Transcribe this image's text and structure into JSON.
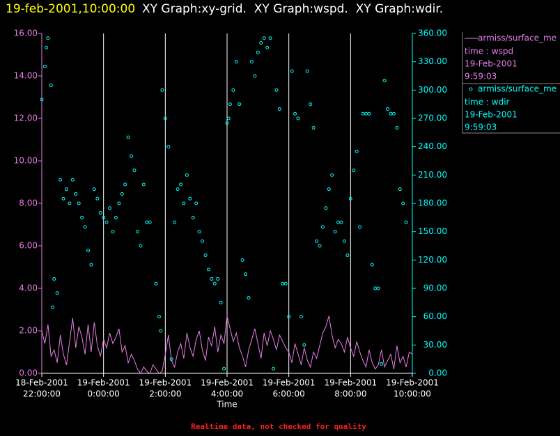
{
  "chart_data": {
    "type": "line_scatter",
    "timestamp": "19-feb-2001,10:00:00",
    "title": "XY Graph:xy-grid.  XY Graph:wspd.  XY Graph:wdir.",
    "x_label": "Time",
    "note": "Realtime data, not checked for quality",
    "grid": true,
    "xlim": [
      22,
      34
    ],
    "xticks": [
      {
        "value": 22,
        "label": [
          "18-Feb-2001",
          "22:00:00"
        ]
      },
      {
        "value": 24,
        "label": [
          "19-Feb-2001",
          "0:00:00"
        ]
      },
      {
        "value": 26,
        "label": [
          "19-Feb-2001",
          "2:00:00"
        ]
      },
      {
        "value": 28,
        "label": [
          "19-Feb-2001",
          "4:00:00"
        ]
      },
      {
        "value": 30,
        "label": [
          "19-Feb-2001",
          "6:00:00"
        ]
      },
      {
        "value": 32,
        "label": [
          "19-Feb-2001",
          "8:00:00"
        ]
      },
      {
        "value": 34,
        "label": [
          "19-Feb-2001",
          "10:00:00"
        ]
      }
    ],
    "ylim": [
      0,
      16
    ],
    "yticks": [
      {
        "value": 0,
        "label": "0.00"
      },
      {
        "value": 2,
        "label": "2.00"
      },
      {
        "value": 4,
        "label": "4.00"
      },
      {
        "value": 6,
        "label": "6.00"
      },
      {
        "value": 8,
        "label": "8.00"
      },
      {
        "value": 10,
        "label": "10.00"
      },
      {
        "value": 12,
        "label": "12.00"
      },
      {
        "value": 14,
        "label": "14.00"
      },
      {
        "value": 16,
        "label": "16.00"
      }
    ],
    "y2lim": [
      0,
      360
    ],
    "y2ticks": [
      {
        "value": 0,
        "label": "0.00"
      },
      {
        "value": 30,
        "label": "30.00"
      },
      {
        "value": 60,
        "label": "60.00"
      },
      {
        "value": 90,
        "label": "90.00"
      },
      {
        "value": 120,
        "label": "120.00"
      },
      {
        "value": 150,
        "label": "150.00"
      },
      {
        "value": 180,
        "label": "180.00"
      },
      {
        "value": 210,
        "label": "210.00"
      },
      {
        "value": 240,
        "label": "240.00"
      },
      {
        "value": 270,
        "label": "270.00"
      },
      {
        "value": 300,
        "label": "300.00"
      },
      {
        "value": 330,
        "label": "330.00"
      },
      {
        "value": 360,
        "label": "360.00"
      }
    ],
    "series": [
      {
        "name": "armiss/surface_me",
        "kind": "line",
        "color": "#e67ee6",
        "legend_info": [
          "time : wspd",
          "19-Feb-2001",
          "9:59:03"
        ],
        "x": [
          22,
          22.1,
          22.2,
          22.3,
          22.4,
          22.5,
          22.6,
          22.7,
          22.8,
          22.9,
          23,
          23.1,
          23.2,
          23.3,
          23.4,
          23.5,
          23.6,
          23.7,
          23.8,
          23.9,
          24,
          24.1,
          24.2,
          24.3,
          24.4,
          24.5,
          24.6,
          24.7,
          24.8,
          24.9,
          25,
          25.1,
          25.2,
          25.3,
          25.4,
          25.5,
          25.6,
          25.7,
          25.8,
          25.9,
          26,
          26.1,
          26.2,
          26.3,
          26.4,
          26.5,
          26.6,
          26.7,
          26.8,
          26.9,
          27,
          27.1,
          27.2,
          27.3,
          27.4,
          27.5,
          27.6,
          27.7,
          27.8,
          27.9,
          28,
          28.1,
          28.2,
          28.3,
          28.4,
          28.5,
          28.6,
          28.7,
          28.8,
          28.9,
          29,
          29.1,
          29.2,
          29.3,
          29.4,
          29.5,
          29.6,
          29.7,
          29.8,
          29.9,
          30,
          30.1,
          30.2,
          30.3,
          30.4,
          30.5,
          30.6,
          30.7,
          30.8,
          30.9,
          31,
          31.1,
          31.2,
          31.3,
          31.4,
          31.5,
          31.6,
          31.7,
          31.8,
          31.9,
          32,
          32.1,
          32.2,
          32.3,
          32.4,
          32.5,
          32.6,
          32.7,
          32.8,
          32.9,
          33,
          33.1,
          33.2,
          33.3,
          33.4,
          33.5,
          33.6,
          33.7,
          33.8,
          33.9,
          34
        ],
        "values": [
          2.0,
          1.4,
          2.3,
          0.8,
          1.1,
          0.5,
          1.8,
          0.9,
          0.4,
          1.5,
          2.6,
          1.2,
          2.2,
          1.7,
          0.9,
          2.3,
          1.0,
          2.4,
          1.3,
          0.8,
          1.6,
          1.2,
          1.9,
          1.4,
          1.7,
          2.1,
          1.0,
          1.3,
          0.5,
          0.9,
          0.6,
          0.2,
          0.0,
          0.3,
          0.1,
          0.0,
          0.4,
          0.2,
          0.0,
          0.1,
          0.9,
          1.8,
          0.6,
          0.3,
          1.0,
          1.4,
          0.7,
          1.9,
          1.2,
          0.8,
          1.6,
          2.0,
          1.1,
          0.6,
          1.7,
          1.3,
          2.2,
          1.0,
          1.8,
          1.4,
          2.7,
          2.1,
          1.5,
          1.9,
          1.2,
          0.8,
          0.3,
          1.1,
          1.6,
          2.1,
          1.4,
          0.7,
          1.9,
          1.3,
          2.0,
          1.6,
          1.1,
          1.8,
          1.5,
          1.2,
          1.0,
          0.5,
          1.4,
          0.9,
          0.4,
          1.2,
          0.6,
          0.3,
          1.0,
          0.7,
          1.3,
          1.9,
          2.2,
          2.7,
          1.8,
          1.2,
          1.6,
          1.4,
          1.0,
          1.7,
          1.2,
          0.8,
          1.5,
          1.0,
          0.6,
          0.3,
          1.1,
          0.5,
          0.2,
          0.4,
          1.1,
          0.3,
          0.6,
          0.9,
          0.2,
          1.3,
          0.5,
          0.8,
          0.3,
          1.0,
          0.9
        ]
      },
      {
        "name": "armiss/surface_me",
        "kind": "scatter",
        "axis": "y2",
        "color": "#00ffff",
        "legend_info": [
          "time : wdir",
          "19-Feb-2001",
          "9:59:03"
        ],
        "x": [
          22,
          22.1,
          22.15,
          22.2,
          22.3,
          22.35,
          22.4,
          22.5,
          22.6,
          22.7,
          22.8,
          22.9,
          23,
          23.1,
          23.2,
          23.3,
          23.4,
          23.5,
          23.6,
          23.7,
          23.8,
          23.9,
          24,
          24.1,
          24.2,
          24.3,
          24.4,
          24.5,
          24.6,
          24.7,
          24.8,
          24.9,
          25,
          25.1,
          25.2,
          25.3,
          25.4,
          25.5,
          25.7,
          25.8,
          25.85,
          25.9,
          26,
          26.1,
          26.2,
          26.3,
          26.4,
          26.5,
          26.6,
          26.7,
          26.8,
          26.9,
          27,
          27.1,
          27.2,
          27.3,
          27.4,
          27.5,
          27.6,
          27.7,
          27.8,
          27.9,
          28,
          28.05,
          28.1,
          28.2,
          28.3,
          28.4,
          28.5,
          28.6,
          28.7,
          28.8,
          28.9,
          29,
          29.1,
          29.2,
          29.3,
          29.4,
          29.5,
          29.6,
          29.7,
          29.8,
          29.9,
          30,
          30.1,
          30.2,
          30.3,
          30.4,
          30.5,
          30.6,
          30.7,
          30.8,
          30.9,
          31,
          31.1,
          31.2,
          31.3,
          31.4,
          31.5,
          31.6,
          31.7,
          31.8,
          31.9,
          32,
          32.1,
          32.2,
          32.3,
          32.4,
          32.5,
          32.6,
          32.7,
          32.8,
          32.9,
          33,
          33.1,
          33.2,
          33.3,
          33.4,
          33.5,
          33.6,
          33.7,
          33.8
        ],
        "values": [
          290,
          325,
          345,
          355,
          305,
          70,
          100,
          85,
          205,
          185,
          195,
          180,
          205,
          190,
          180,
          165,
          155,
          130,
          115,
          195,
          185,
          170,
          165,
          160,
          175,
          150,
          165,
          180,
          190,
          200,
          250,
          230,
          215,
          150,
          135,
          200,
          160,
          160,
          95,
          60,
          45,
          300,
          270,
          240,
          15,
          160,
          195,
          200,
          180,
          210,
          185,
          165,
          180,
          150,
          140,
          125,
          110,
          100,
          95,
          100,
          75,
          5,
          265,
          270,
          285,
          300,
          330,
          285,
          120,
          105,
          80,
          330,
          315,
          340,
          350,
          355,
          345,
          355,
          5,
          300,
          280,
          95,
          95,
          60,
          320,
          275,
          270,
          60,
          30,
          320,
          285,
          260,
          140,
          135,
          155,
          175,
          195,
          210,
          150,
          160,
          160,
          140,
          125,
          185,
          215,
          235,
          155,
          275,
          275,
          275,
          115,
          90,
          90,
          10,
          310,
          280,
          275,
          275,
          260,
          195,
          180,
          160
        ]
      }
    ]
  }
}
